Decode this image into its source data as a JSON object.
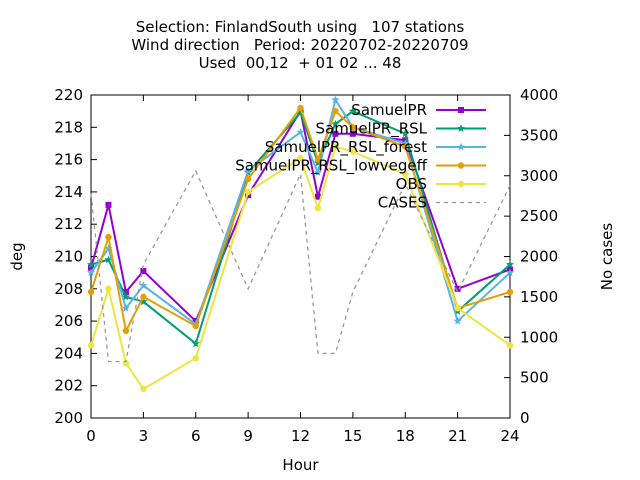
{
  "chart_data": {
    "type": "line",
    "title_lines": [
      "Selection: FinlandSouth using   107 stations",
      "Wind direction   Period: 20220702-20220709",
      "Used  00,12  + 01 02 ... 48"
    ],
    "xlabel": "Hour",
    "ylabel": "deg",
    "y2label": "No cases",
    "xlim": [
      0,
      24
    ],
    "ylim": [
      200,
      220
    ],
    "y2lim": [
      0,
      4000
    ],
    "xticks": [
      0,
      3,
      6,
      9,
      12,
      15,
      18,
      21,
      24
    ],
    "yticks": [
      200,
      202,
      204,
      206,
      208,
      210,
      212,
      214,
      216,
      218,
      220
    ],
    "y2ticks": [
      0,
      500,
      1000,
      1500,
      2000,
      2500,
      3000,
      3500,
      4000
    ],
    "grid": false,
    "legend_position": "top-right",
    "x": [
      0,
      1,
      2,
      3,
      6,
      9,
      12,
      13,
      14,
      15,
      18,
      21,
      24
    ],
    "series": [
      {
        "name": "SamuelPR",
        "color": "#9400d3",
        "marker": "square",
        "axis": "y",
        "values": [
          209.3,
          213.2,
          207.8,
          209.1,
          206.0,
          213.8,
          219.0,
          213.7,
          217.6,
          217.6,
          217.2,
          208.0,
          209.2
        ]
      },
      {
        "name": "SamuelPR_RSL",
        "color": "#009e73",
        "marker": "star",
        "axis": "y",
        "values": [
          209.5,
          209.8,
          207.5,
          207.2,
          204.6,
          215.2,
          218.9,
          215.8,
          218.2,
          219.0,
          217.6,
          206.6,
          209.5
        ]
      },
      {
        "name": "SamuelPR_RSL_forest",
        "color": "#56b4e9",
        "marker": "star",
        "axis": "y",
        "values": [
          209.0,
          210.5,
          206.8,
          208.2,
          205.8,
          215.3,
          217.7,
          215.2,
          219.7,
          218.0,
          217.0,
          206.0,
          209.0
        ]
      },
      {
        "name": "SamuelPR_RSL_lowvegeff",
        "color": "#e69f00",
        "marker": "circle",
        "axis": "y",
        "values": [
          207.8,
          211.2,
          205.4,
          207.5,
          205.7,
          214.8,
          219.2,
          216.0,
          219.0,
          218.0,
          216.8,
          206.8,
          207.8
        ]
      },
      {
        "name": "OBS",
        "color": "#f0e442",
        "marker": "circle",
        "axis": "y",
        "values": [
          204.5,
          208.0,
          203.4,
          201.8,
          203.7,
          214.0,
          216.1,
          213.0,
          216.8,
          216.5,
          215.1,
          206.8,
          204.5
        ]
      },
      {
        "name": "CASES",
        "color": "#999999",
        "marker": "none",
        "dashed": true,
        "axis": "y2",
        "values": [
          2780,
          700,
          700,
          1900,
          3060,
          1600,
          3020,
          800,
          800,
          1560,
          2900,
          1560,
          2880
        ]
      }
    ]
  }
}
